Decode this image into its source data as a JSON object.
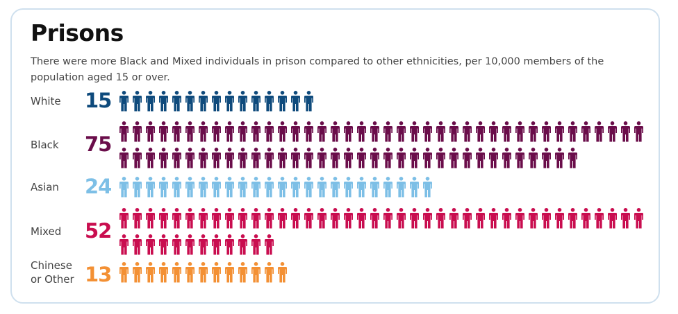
{
  "chart_data": {
    "type": "pictogram",
    "title": "Prisons",
    "subtitle": "There were more Black and Mixed individuals in prison compared to other ethnicities, per 10,000 members of the population aged 15 or over.",
    "unit_per_icon": 1,
    "icons_per_row": 40,
    "categories": [
      {
        "label": [
          "White"
        ],
        "value": 15,
        "display": "15",
        "color": "#0e4a7c"
      },
      {
        "label": [
          "Black"
        ],
        "value": 75,
        "display": "75",
        "color": "#6a0d4a"
      },
      {
        "label": [
          "Asian"
        ],
        "value": 24,
        "display": "24",
        "color": "#7dbfe6"
      },
      {
        "label": [
          "Mixed"
        ],
        "value": 52,
        "display": "52",
        "color": "#c90d4f"
      },
      {
        "label": [
          "Chinese",
          "or Other"
        ],
        "value": 13,
        "display": "13",
        "color": "#f39034"
      }
    ],
    "icon": "person-icon"
  }
}
